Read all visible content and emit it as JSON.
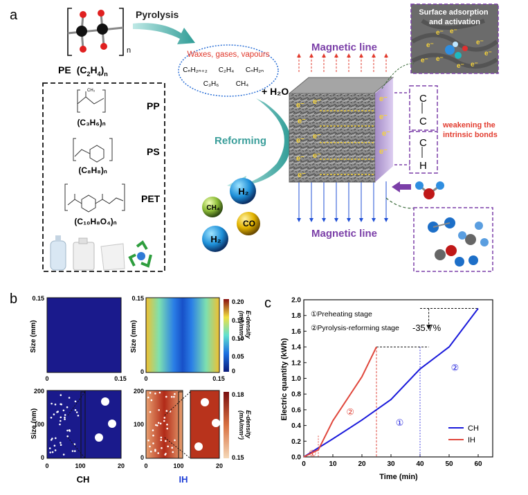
{
  "panel_a": {
    "letter": "a",
    "pyrolysis": "Pyrolysis",
    "reforming": "Reforming",
    "pe_label": "PE (C₂H₄)ₙ",
    "pe_formula_parts": {
      "name": "PE",
      "formula": "(C",
      "sub1": "2",
      "mid": "H",
      "sub2": "4",
      "end": ")",
      "n": "n"
    },
    "bracket_n": "n",
    "products": {
      "title": "Waxes, gases, vapours",
      "row1": [
        "CₙH₂ₙ₊₂",
        "C₂H₄",
        "CₙH₂ₙ"
      ],
      "row2": [
        "C₃H₆",
        "CH₄"
      ]
    },
    "plastics": [
      {
        "name": "PP",
        "formula": "(C₃H₆)ₙ",
        "sub_label": "CH₃"
      },
      {
        "name": "PS",
        "formula": "(C₈H₈)ₙ",
        "sub_label": ""
      },
      {
        "name": "PET",
        "formula": "(C₁₀H₈O₄)ₙ",
        "sub_label": ""
      }
    ],
    "plus_h2o": "+ H₂O",
    "gas_balls": [
      "H₂",
      "CH₄",
      "CO",
      "H₂"
    ],
    "magnetic_top": "Magnetic line",
    "magnetic_bottom": "Magnetic line",
    "electron": "e⁻",
    "surface_title": "Surface adsorption\nand activation",
    "bonds": [
      "C",
      "C",
      "C",
      "H"
    ],
    "weakening": "weakening the\nintrinsic bonds",
    "colors": {
      "accent": "#7b3fa8",
      "red": "#e23b2e",
      "teal": "#3a9e9a",
      "blue": "#1f4fd6"
    }
  },
  "panel_b": {
    "letter": "b",
    "top": {
      "y_label": "Size (mm)",
      "x_ticks": [
        "0",
        "0.15"
      ],
      "y_ticks": [
        "0",
        "0.15"
      ],
      "colorbar_label": "E-density\n(mA/mm²)",
      "colorbar_ticks": [
        "0.20",
        "0.15",
        "0.10",
        "0.05",
        "0"
      ]
    },
    "bottom": {
      "y_label": "Size (nm)",
      "x_ticks_main": [
        "0",
        "100"
      ],
      "x_ticks_zoom": [
        "20"
      ],
      "y_ticks": [
        "0",
        "100",
        "200"
      ],
      "colorbar_label": "E-density\n(mA/mm²)",
      "colorbar_ticks": [
        "0.18",
        "0.15"
      ]
    },
    "labels": [
      "CH",
      "IH"
    ]
  },
  "chart_data": {
    "type": "line",
    "panel_letter": "c",
    "xlabel": "Time (min)",
    "ylabel": "Electric quantity (kWh)",
    "xlim": [
      0,
      65
    ],
    "ylim": [
      0,
      2.0
    ],
    "x_ticks": [
      0,
      10,
      20,
      30,
      40,
      50,
      60
    ],
    "y_ticks": [
      0.0,
      0.2,
      0.4,
      0.6,
      0.8,
      1.0,
      1.2,
      1.4,
      1.6,
      1.8,
      2.0
    ],
    "series": [
      {
        "name": "CH",
        "color": "#1a1adb",
        "x": [
          0,
          10,
          20,
          30,
          40,
          50,
          60
        ],
        "y": [
          0,
          0.23,
          0.47,
          0.73,
          1.12,
          1.4,
          1.89
        ]
      },
      {
        "name": "IH",
        "color": "#e0473c",
        "x": [
          0,
          5,
          10,
          20,
          25
        ],
        "y": [
          0,
          0.09,
          0.46,
          1.02,
          1.4
        ]
      }
    ],
    "stage_legend": [
      "①Preheating stage",
      "②Pyrolysis-reforming stage"
    ],
    "annotation": "-35.7%",
    "stage_marks": [
      {
        "text": "①",
        "x": 3,
        "y": 0.04,
        "color": "#e0473c"
      },
      {
        "text": "②",
        "x": 16,
        "y": 0.57,
        "color": "#e0473c"
      },
      {
        "text": "①",
        "x": 33,
        "y": 0.43,
        "color": "#1a1adb"
      },
      {
        "text": "②",
        "x": 52,
        "y": 1.13,
        "color": "#1a1adb"
      }
    ],
    "legend_placement": "bottom-right",
    "grid": false
  }
}
